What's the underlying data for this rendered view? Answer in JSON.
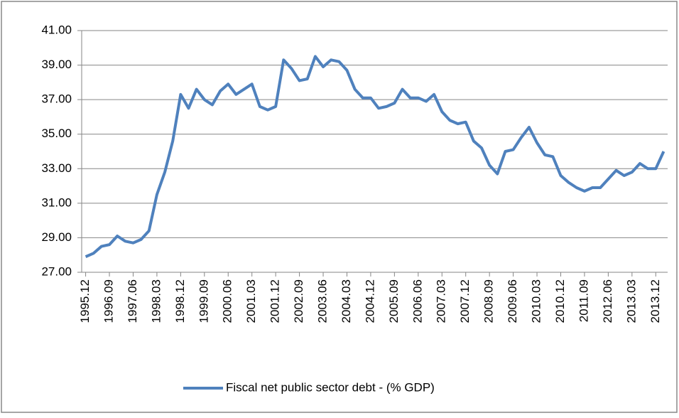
{
  "chart_data": {
    "type": "line",
    "categories": [
      "1995.12",
      null,
      null,
      "1996.09",
      null,
      null,
      "1997.06",
      null,
      null,
      "1998.03",
      null,
      null,
      "1998.12",
      null,
      null,
      "1999.09",
      null,
      null,
      "2000.06",
      null,
      null,
      "2001.03",
      null,
      null,
      "2001.12",
      null,
      null,
      "2002.09",
      null,
      null,
      "2003.06",
      null,
      null,
      "2004.03",
      null,
      null,
      "2004.12",
      null,
      null,
      "2005.09",
      null,
      null,
      "2006.06",
      null,
      null,
      "2007.03",
      null,
      null,
      "2007.12",
      null,
      null,
      "2008.09",
      null,
      null,
      "2009.06",
      null,
      null,
      "2010.03",
      null,
      null,
      "2010.12",
      null,
      null,
      "2011.09",
      null,
      null,
      "2012.06",
      null,
      null,
      "2013.03",
      null,
      null,
      "2013.12",
      null
    ],
    "series": [
      {
        "name": "Fiscal net public sector debt - (% GDP)",
        "color": "#4f81bd",
        "values": [
          27.9,
          28.1,
          28.5,
          28.6,
          29.1,
          28.8,
          28.7,
          28.9,
          29.4,
          31.5,
          32.8,
          34.6,
          37.3,
          36.5,
          37.6,
          37.0,
          36.7,
          37.5,
          37.9,
          37.3,
          37.6,
          37.9,
          36.6,
          36.4,
          36.6,
          39.3,
          38.8,
          38.1,
          38.2,
          39.5,
          38.9,
          39.3,
          39.2,
          38.7,
          37.6,
          37.1,
          37.1,
          36.5,
          36.6,
          36.8,
          37.6,
          37.1,
          37.1,
          36.9,
          37.3,
          36.3,
          35.8,
          35.6,
          35.7,
          34.6,
          34.2,
          33.2,
          32.7,
          34.0,
          34.1,
          34.8,
          35.4,
          34.5,
          33.8,
          33.7,
          32.6,
          32.2,
          31.9,
          31.7,
          31.9,
          31.9,
          32.4,
          32.9,
          32.6,
          32.8,
          33.3,
          33.0,
          33.0,
          34.0
        ]
      }
    ],
    "ylim": [
      27,
      41
    ],
    "yticks": [
      {
        "value": 27,
        "label": "27.00"
      },
      {
        "value": 29,
        "label": "29.00"
      },
      {
        "value": 31,
        "label": "31.00"
      },
      {
        "value": 33,
        "label": "33.00"
      },
      {
        "value": 35,
        "label": "35.00"
      },
      {
        "value": 37,
        "label": "37.00"
      },
      {
        "value": 39,
        "label": "39.00"
      },
      {
        "value": 41,
        "label": "41.00"
      }
    ],
    "grid": true,
    "legend": "bottom"
  }
}
